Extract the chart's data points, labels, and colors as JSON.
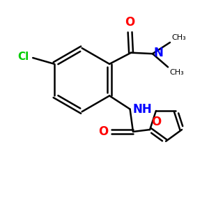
{
  "background_color": "#ffffff",
  "bond_color": "#000000",
  "atom_colors": {
    "O": "#ff0000",
    "N": "#0000ff",
    "Cl": "#00cc00",
    "C": "#000000"
  },
  "figsize": [
    3.0,
    3.0
  ],
  "dpi": 100,
  "xlim": [
    0,
    10
  ],
  "ylim": [
    0,
    10
  ]
}
